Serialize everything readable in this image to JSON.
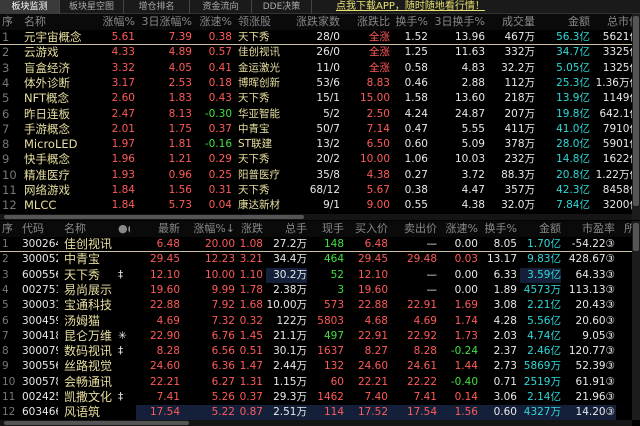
{
  "tabs": [
    "板块监测",
    "板块星空图",
    "增仓排名",
    "资金流向",
    "DDE决策"
  ],
  "active_tab": 0,
  "promo_link": "点我下载APP，随时随地看行情！",
  "colors": {
    "up": "#ff5a5a",
    "down": "#40e040",
    "amount": "#30d8d8",
    "name": "#e8dfa0"
  },
  "sector_table": {
    "headers": [
      "序",
      "名称",
      "涨幅%",
      "3日涨幅%",
      "涨速%",
      "领涨股",
      "涨跌家数",
      "涨跌比",
      "换手%",
      "3日换手%",
      "成交量",
      "金额",
      "总市值"
    ],
    "rows": [
      [
        "1",
        "元宇宙概念",
        "5.61",
        "7.39",
        "0.38",
        "天下秀",
        "28/0",
        "全涨",
        "1.52",
        "13.96",
        "467万",
        "56.3亿",
        "5621亿"
      ],
      [
        "2",
        "云游戏",
        "4.33",
        "4.89",
        "0.57",
        "佳创视讯",
        "26/0",
        "全涨",
        "1.25",
        "11.63",
        "332万",
        "34.7亿",
        "3325亿"
      ],
      [
        "3",
        "盲盒经济",
        "3.32",
        "4.05",
        "0.41",
        "金运激光",
        "11/0",
        "全涨",
        "0.58",
        "4.83",
        "32.2万",
        "5.05亿",
        "1325亿"
      ],
      [
        "4",
        "体外诊断",
        "3.17",
        "2.53",
        "0.18",
        "博晖创新",
        "53/6",
        "8.83",
        "0.46",
        "2.88",
        "112万",
        "25.3亿",
        "1.36万亿"
      ],
      [
        "5",
        "NFT概念",
        "2.60",
        "1.83",
        "0.43",
        "天下秀",
        "15/1",
        "15.00",
        "1.58",
        "13.60",
        "218万",
        "13.9亿",
        "1149亿"
      ],
      [
        "6",
        "昨日连板",
        "2.47",
        "8.13",
        "-0.30",
        "华亚智能",
        "5/2",
        "2.50",
        "4.24",
        "24.87",
        "207万",
        "19.8亿",
        "642.1亿"
      ],
      [
        "7",
        "手游概念",
        "2.01",
        "1.75",
        "0.37",
        "中青宝",
        "50/7",
        "7.14",
        "0.47",
        "5.55",
        "411万",
        "41.0亿",
        "7910亿"
      ],
      [
        "8",
        "MicroLED",
        "1.97",
        "1.81",
        "-0.16",
        "ST联建",
        "13/2",
        "6.50",
        "0.60",
        "5.09",
        "378万",
        "28.0亿",
        "5901亿"
      ],
      [
        "9",
        "快手概念",
        "1.96",
        "1.21",
        "0.29",
        "天下秀",
        "20/2",
        "10.00",
        "1.06",
        "10.03",
        "232万",
        "14.8亿",
        "1622亿"
      ],
      [
        "10",
        "精准医疗",
        "1.93",
        "0.96",
        "0.25",
        "阳普医疗",
        "35/8",
        "4.38",
        "0.27",
        "3.72",
        "88.3万",
        "20.8亿",
        "1.22万亿"
      ],
      [
        "11",
        "网络游戏",
        "1.84",
        "1.56",
        "0.31",
        "天下秀",
        "68/12",
        "5.67",
        "0.38",
        "4.47",
        "357万",
        "42.3亿",
        "8458亿"
      ],
      [
        "12",
        "MLCC",
        "1.84",
        "5.73",
        "0.04",
        "康达新材",
        "9/1",
        "9.00",
        "0.55",
        "4.38",
        "32.0万",
        "7.84亿",
        "3200亿"
      ]
    ]
  },
  "stock_table": {
    "headers": [
      "序",
      "代码",
      "名称",
      "●●",
      "最新",
      "涨幅%↓",
      "涨跌",
      "总手",
      "现手",
      "买入价",
      "卖出价",
      "涨速%",
      "换手%",
      "金额",
      "市盈率",
      "所"
    ],
    "rows": [
      [
        "1",
        "300264",
        "佳创视讯",
        "",
        "6.48",
        "20.00",
        "1.08",
        "27.2万",
        "148",
        "6.48",
        "—",
        "0.00",
        "8.05",
        "1.70亿",
        "-54.22③"
      ],
      [
        "2",
        "300052",
        "中青宝",
        "",
        "29.45",
        "12.23",
        "3.21",
        "34.4万",
        "464",
        "29.45",
        "29.48",
        "0.03",
        "13.17",
        "9.83亿",
        "428.67③"
      ],
      [
        "3",
        "600556",
        "天下秀",
        "‡",
        "12.10",
        "10.00",
        "1.10",
        "30.2万",
        "52",
        "12.10",
        "—",
        "0.00",
        "6.33",
        "3.59亿",
        "64.33③"
      ],
      [
        "4",
        "002751",
        "易尚展示",
        "",
        "19.60",
        "9.99",
        "1.78",
        "2.38万",
        "3",
        "19.60",
        "—",
        "0.00",
        "1.89",
        "4573万",
        "113.13③"
      ],
      [
        "5",
        "300031",
        "宝通科技",
        "",
        "22.88",
        "7.92",
        "1.68",
        "10.00万",
        "573",
        "22.88",
        "22.91",
        "1.69",
        "3.08",
        "2.21亿",
        "20.43③"
      ],
      [
        "6",
        "300459",
        "汤姆猫",
        "",
        "4.69",
        "7.32",
        "0.32",
        "122万",
        "5803",
        "4.68",
        "4.69",
        "1.74",
        "4.28",
        "5.56亿",
        "20.60③"
      ],
      [
        "7",
        "300418",
        "昆仑万维",
        "✳",
        "22.90",
        "6.76",
        "1.45",
        "21.1万",
        "497",
        "22.91",
        "22.92",
        "1.73",
        "2.03",
        "4.74亿",
        "9.05③"
      ],
      [
        "8",
        "300079",
        "数码视讯",
        "‡",
        "8.28",
        "6.56",
        "0.51",
        "30.1万",
        "1637",
        "8.27",
        "8.28",
        "-0.24",
        "2.37",
        "2.46亿",
        "120.77③"
      ],
      [
        "9",
        "300556",
        "丝路视觉",
        "",
        "24.60",
        "6.36",
        "1.47",
        "2.44万",
        "132",
        "24.60",
        "24.61",
        "1.44",
        "2.73",
        "5869万",
        "52.39③"
      ],
      [
        "10",
        "300578",
        "会畅通讯",
        "",
        "22.21",
        "6.27",
        "1.31",
        "1.15万",
        "60",
        "22.21",
        "22.22",
        "-0.40",
        "0.71",
        "2519万",
        "61.91③"
      ],
      [
        "11",
        "002425",
        "凯撒文化",
        "‡",
        "7.41",
        "5.26",
        "0.37",
        "29.3万",
        "1462",
        "7.40",
        "7.41",
        "0.14",
        "3.06",
        "2.14亿",
        "21.96③"
      ],
      [
        "12",
        "603466",
        "风语筑",
        "",
        "17.54",
        "5.22",
        "0.87",
        "2.51万",
        "114",
        "17.52",
        "17.54",
        "1.56",
        "0.60",
        "4327万",
        "14.20③"
      ]
    ],
    "current_hand_direction": [
      "down",
      "down",
      "down",
      "down",
      "up",
      "up",
      "down",
      "up",
      "up",
      "up",
      "up",
      "up"
    ]
  }
}
